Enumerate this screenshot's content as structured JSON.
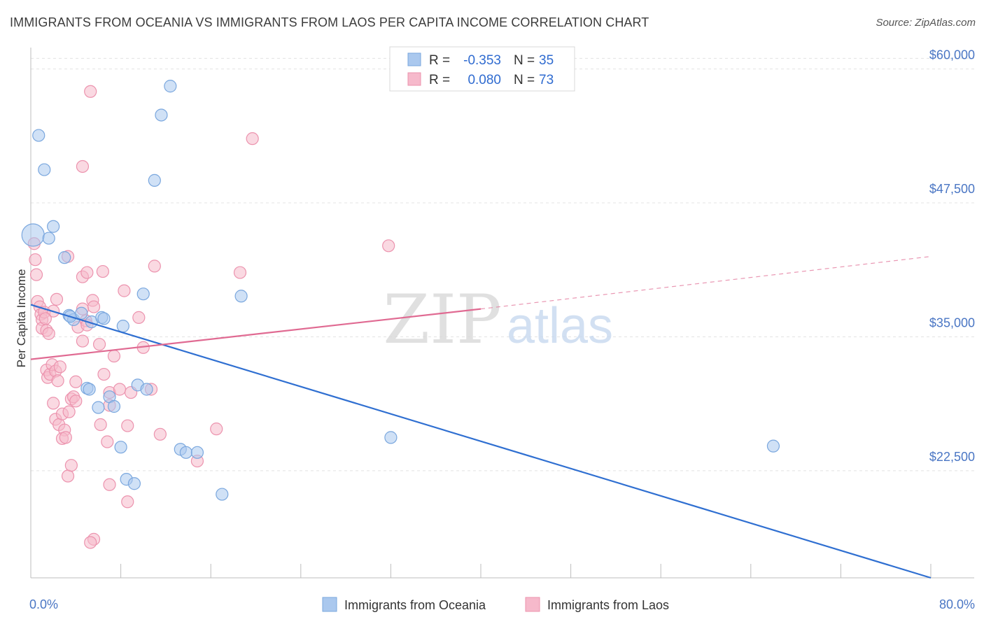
{
  "title": "IMMIGRANTS FROM OCEANIA VS IMMIGRANTS FROM LAOS PER CAPITA INCOME CORRELATION CHART",
  "source": "Source: ZipAtlas.com",
  "watermark": {
    "zip": "ZIP",
    "atlas": "atlas"
  },
  "colors": {
    "oceania_fill": "#aac8ee",
    "oceania_stroke": "#7aa7de",
    "oceania_line": "#2f6fd1",
    "laos_fill": "#f6b9cb",
    "laos_stroke": "#ec93ae",
    "laos_line": "#e06a92",
    "grid": "#e3e3e3",
    "tick_text": "#4a76c4"
  },
  "stats": [
    {
      "r_label": "R = ",
      "r_value": "-0.353",
      "n_label": "N = ",
      "n_value": "35"
    },
    {
      "r_label": "R = ",
      "r_value": "0.080",
      "n_label": "N = ",
      "n_value": "73"
    }
  ],
  "chart_data": {
    "type": "scatter",
    "title": "IMMIGRANTS FROM OCEANIA VS IMMIGRANTS FROM LAOS PER CAPITA INCOME CORRELATION CHART",
    "xlabel": "",
    "ylabel": "Per Capita Income",
    "xlim": [
      0,
      80
    ],
    "ylim": [
      12500,
      62000
    ],
    "x_tick_labels": [
      "0.0%",
      "80.0%"
    ],
    "y_ticks": [
      22500,
      35000,
      47500,
      60000
    ],
    "y_tick_labels": [
      "$22,500",
      "$35,000",
      "$47,500",
      "$60,000"
    ],
    "grid": true,
    "legend_position": "bottom-center",
    "series": [
      {
        "name": "Immigrants from Oceania",
        "points": [
          [
            0.2,
            44500
          ],
          [
            0.7,
            53800
          ],
          [
            1.2,
            50600
          ],
          [
            1.6,
            44200
          ],
          [
            2.0,
            45300
          ],
          [
            3.0,
            42400
          ],
          [
            3.4,
            37000
          ],
          [
            3.8,
            36600
          ],
          [
            4.5,
            37200
          ],
          [
            5.4,
            36400
          ],
          [
            6.3,
            36800
          ],
          [
            8.2,
            36000
          ],
          [
            10.0,
            39000
          ],
          [
            5.0,
            30200
          ],
          [
            5.2,
            30100
          ],
          [
            7.0,
            29400
          ],
          [
            7.4,
            28500
          ],
          [
            6.0,
            28400
          ],
          [
            9.5,
            30500
          ],
          [
            10.3,
            30100
          ],
          [
            8.0,
            24700
          ],
          [
            8.5,
            21700
          ],
          [
            9.2,
            21300
          ],
          [
            11.0,
            49600
          ],
          [
            11.6,
            55700
          ],
          [
            12.4,
            58400
          ],
          [
            13.3,
            24500
          ],
          [
            13.8,
            24200
          ],
          [
            14.8,
            24200
          ],
          [
            17.0,
            20300
          ],
          [
            18.7,
            38800
          ],
          [
            32.0,
            25600
          ],
          [
            66.0,
            24800
          ],
          [
            6.5,
            36700
          ],
          [
            3.5,
            36900
          ]
        ]
      },
      {
        "name": "Immigrants from Laos",
        "points": [
          [
            0.3,
            43700
          ],
          [
            0.4,
            42200
          ],
          [
            0.5,
            40800
          ],
          [
            0.6,
            38300
          ],
          [
            0.8,
            37800
          ],
          [
            0.9,
            37100
          ],
          [
            1.0,
            36600
          ],
          [
            1.0,
            35800
          ],
          [
            1.2,
            37300
          ],
          [
            1.4,
            35600
          ],
          [
            1.6,
            35300
          ],
          [
            1.4,
            31900
          ],
          [
            1.5,
            31200
          ],
          [
            1.7,
            31500
          ],
          [
            1.9,
            32400
          ],
          [
            2.2,
            31800
          ],
          [
            2.4,
            30900
          ],
          [
            2.6,
            32200
          ],
          [
            2.0,
            28800
          ],
          [
            2.2,
            27300
          ],
          [
            2.5,
            26800
          ],
          [
            2.8,
            27800
          ],
          [
            3.0,
            26300
          ],
          [
            2.8,
            25500
          ],
          [
            3.1,
            25600
          ],
          [
            3.4,
            28000
          ],
          [
            3.6,
            29200
          ],
          [
            3.8,
            29400
          ],
          [
            4.0,
            29000
          ],
          [
            3.3,
            22000
          ],
          [
            3.6,
            23000
          ],
          [
            4.2,
            35900
          ],
          [
            4.6,
            34600
          ],
          [
            4.9,
            36500
          ],
          [
            5.0,
            36100
          ],
          [
            5.5,
            38400
          ],
          [
            5.6,
            37800
          ],
          [
            3.3,
            42500
          ],
          [
            4.6,
            40600
          ],
          [
            5.0,
            41000
          ],
          [
            2.3,
            38500
          ],
          [
            4.6,
            37600
          ],
          [
            6.1,
            34300
          ],
          [
            6.5,
            31500
          ],
          [
            7.0,
            29800
          ],
          [
            7.0,
            28600
          ],
          [
            7.4,
            33200
          ],
          [
            7.9,
            30100
          ],
          [
            6.2,
            26800
          ],
          [
            6.8,
            25200
          ],
          [
            7.0,
            21200
          ],
          [
            8.6,
            26700
          ],
          [
            8.6,
            19600
          ],
          [
            8.9,
            29800
          ],
          [
            9.6,
            36800
          ],
          [
            10.0,
            34000
          ],
          [
            10.7,
            30100
          ],
          [
            11.0,
            41600
          ],
          [
            11.5,
            25900
          ],
          [
            5.6,
            16100
          ],
          [
            5.3,
            15800
          ],
          [
            4.6,
            50900
          ],
          [
            5.3,
            57900
          ],
          [
            19.7,
            53500
          ],
          [
            18.6,
            41000
          ],
          [
            16.5,
            26400
          ],
          [
            14.8,
            23400
          ],
          [
            31.8,
            43500
          ],
          [
            4.0,
            30800
          ],
          [
            2.0,
            37400
          ],
          [
            8.3,
            39300
          ],
          [
            6.4,
            41100
          ],
          [
            1.3,
            36700
          ]
        ]
      }
    ],
    "trend_lines": [
      {
        "series": "Immigrants from Oceania",
        "x": [
          0,
          80
        ],
        "y": [
          38000,
          12500
        ]
      },
      {
        "series": "Immigrants from Laos",
        "x": [
          0,
          40
        ],
        "y": [
          32900,
          37600
        ],
        "dashed_x": [
          40,
          80
        ],
        "dashed_y": [
          37600,
          42500
        ]
      }
    ]
  }
}
